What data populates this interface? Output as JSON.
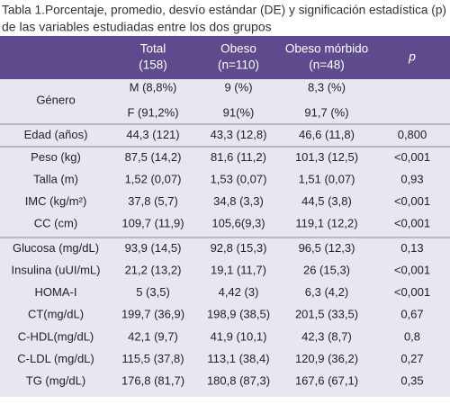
{
  "title": [
    "Tabla 1.Porcentaje, promedio, desvío estándar (DE) y significación estadística (p)",
    "de las variables estudiadas entre los dos grupos"
  ],
  "header": [
    [
      "Total",
      "(158)"
    ],
    [
      "Obeso",
      "(n=110)"
    ],
    [
      "Obeso mórbido",
      "(n=48)"
    ],
    [
      "p"
    ]
  ],
  "genero": {
    "label": "Género",
    "rows": [
      [
        "M (8,8%)",
        "9 (%)",
        "8,3 (%)"
      ],
      [
        "F (91,2%)",
        "91(%)",
        "91,7 (%)"
      ]
    ]
  },
  "groups": [
    [
      {
        "label": "Edad (años)",
        "cells": [
          "44,3 (121)",
          "43,3 (12,8)",
          "46,6 (11,8)",
          "0,800"
        ]
      }
    ],
    [
      {
        "label": "Peso (kg)",
        "cells": [
          "87,5 (14,2)",
          "81,6 (11,2)",
          "101,3 (12,5)",
          "<0,001"
        ]
      },
      {
        "label": "Talla (m)",
        "cells": [
          "1,52 (0,07)",
          "1,53 (0,07)",
          "1,51 (0,07)",
          "0,93"
        ]
      },
      {
        "label": "IMC (kg/m²)",
        "cells": [
          "37,8 (5,7)",
          "34,8 (3,3)",
          "44,5 (3,8)",
          "<0,001"
        ]
      },
      {
        "label": "CC (cm)",
        "cells": [
          "109,7 (11,9)",
          "105,6(9,3)",
          "119,1 (12,2)",
          "<0,001"
        ]
      }
    ],
    [
      {
        "label": "Glucosa (mg/dL)",
        "cells": [
          "93,9 (14,5)",
          "92,8 (15,3)",
          "96,5 (12,3)",
          "0,13"
        ]
      },
      {
        "label": "Insulina (uUI/mL)",
        "cells": [
          "21,2 (13,2)",
          "19,1 (11,7)",
          "26 (15,3)",
          "<0,001"
        ]
      },
      {
        "label": "HOMA-I",
        "cells": [
          "5 (3,5)",
          "4,42 (3)",
          "6,3 (4,2)",
          "<0,001"
        ]
      },
      {
        "label": "CT(mg/dL)",
        "cells": [
          "199,7 (36,9)",
          "198,9 (38,5)",
          "201,5 (33,5)",
          "0,67"
        ]
      },
      {
        "label": "C-HDL(mg/dL)",
        "cells": [
          "42,1 (9,7)",
          "41,9 (10,1)",
          "42,3 (8,7)",
          "0,8"
        ]
      },
      {
        "label": "C-LDL (mg/dL)",
        "cells": [
          "115,5 (37,8)",
          "113,1 (38,4)",
          "120,9 (36,2)",
          "0,27"
        ]
      },
      {
        "label": "TG (mg/dL)",
        "cells": [
          "176,8 (81,7)",
          "180,8 (87,3)",
          "167,6 (67,1)",
          "0,35"
        ]
      }
    ]
  ]
}
